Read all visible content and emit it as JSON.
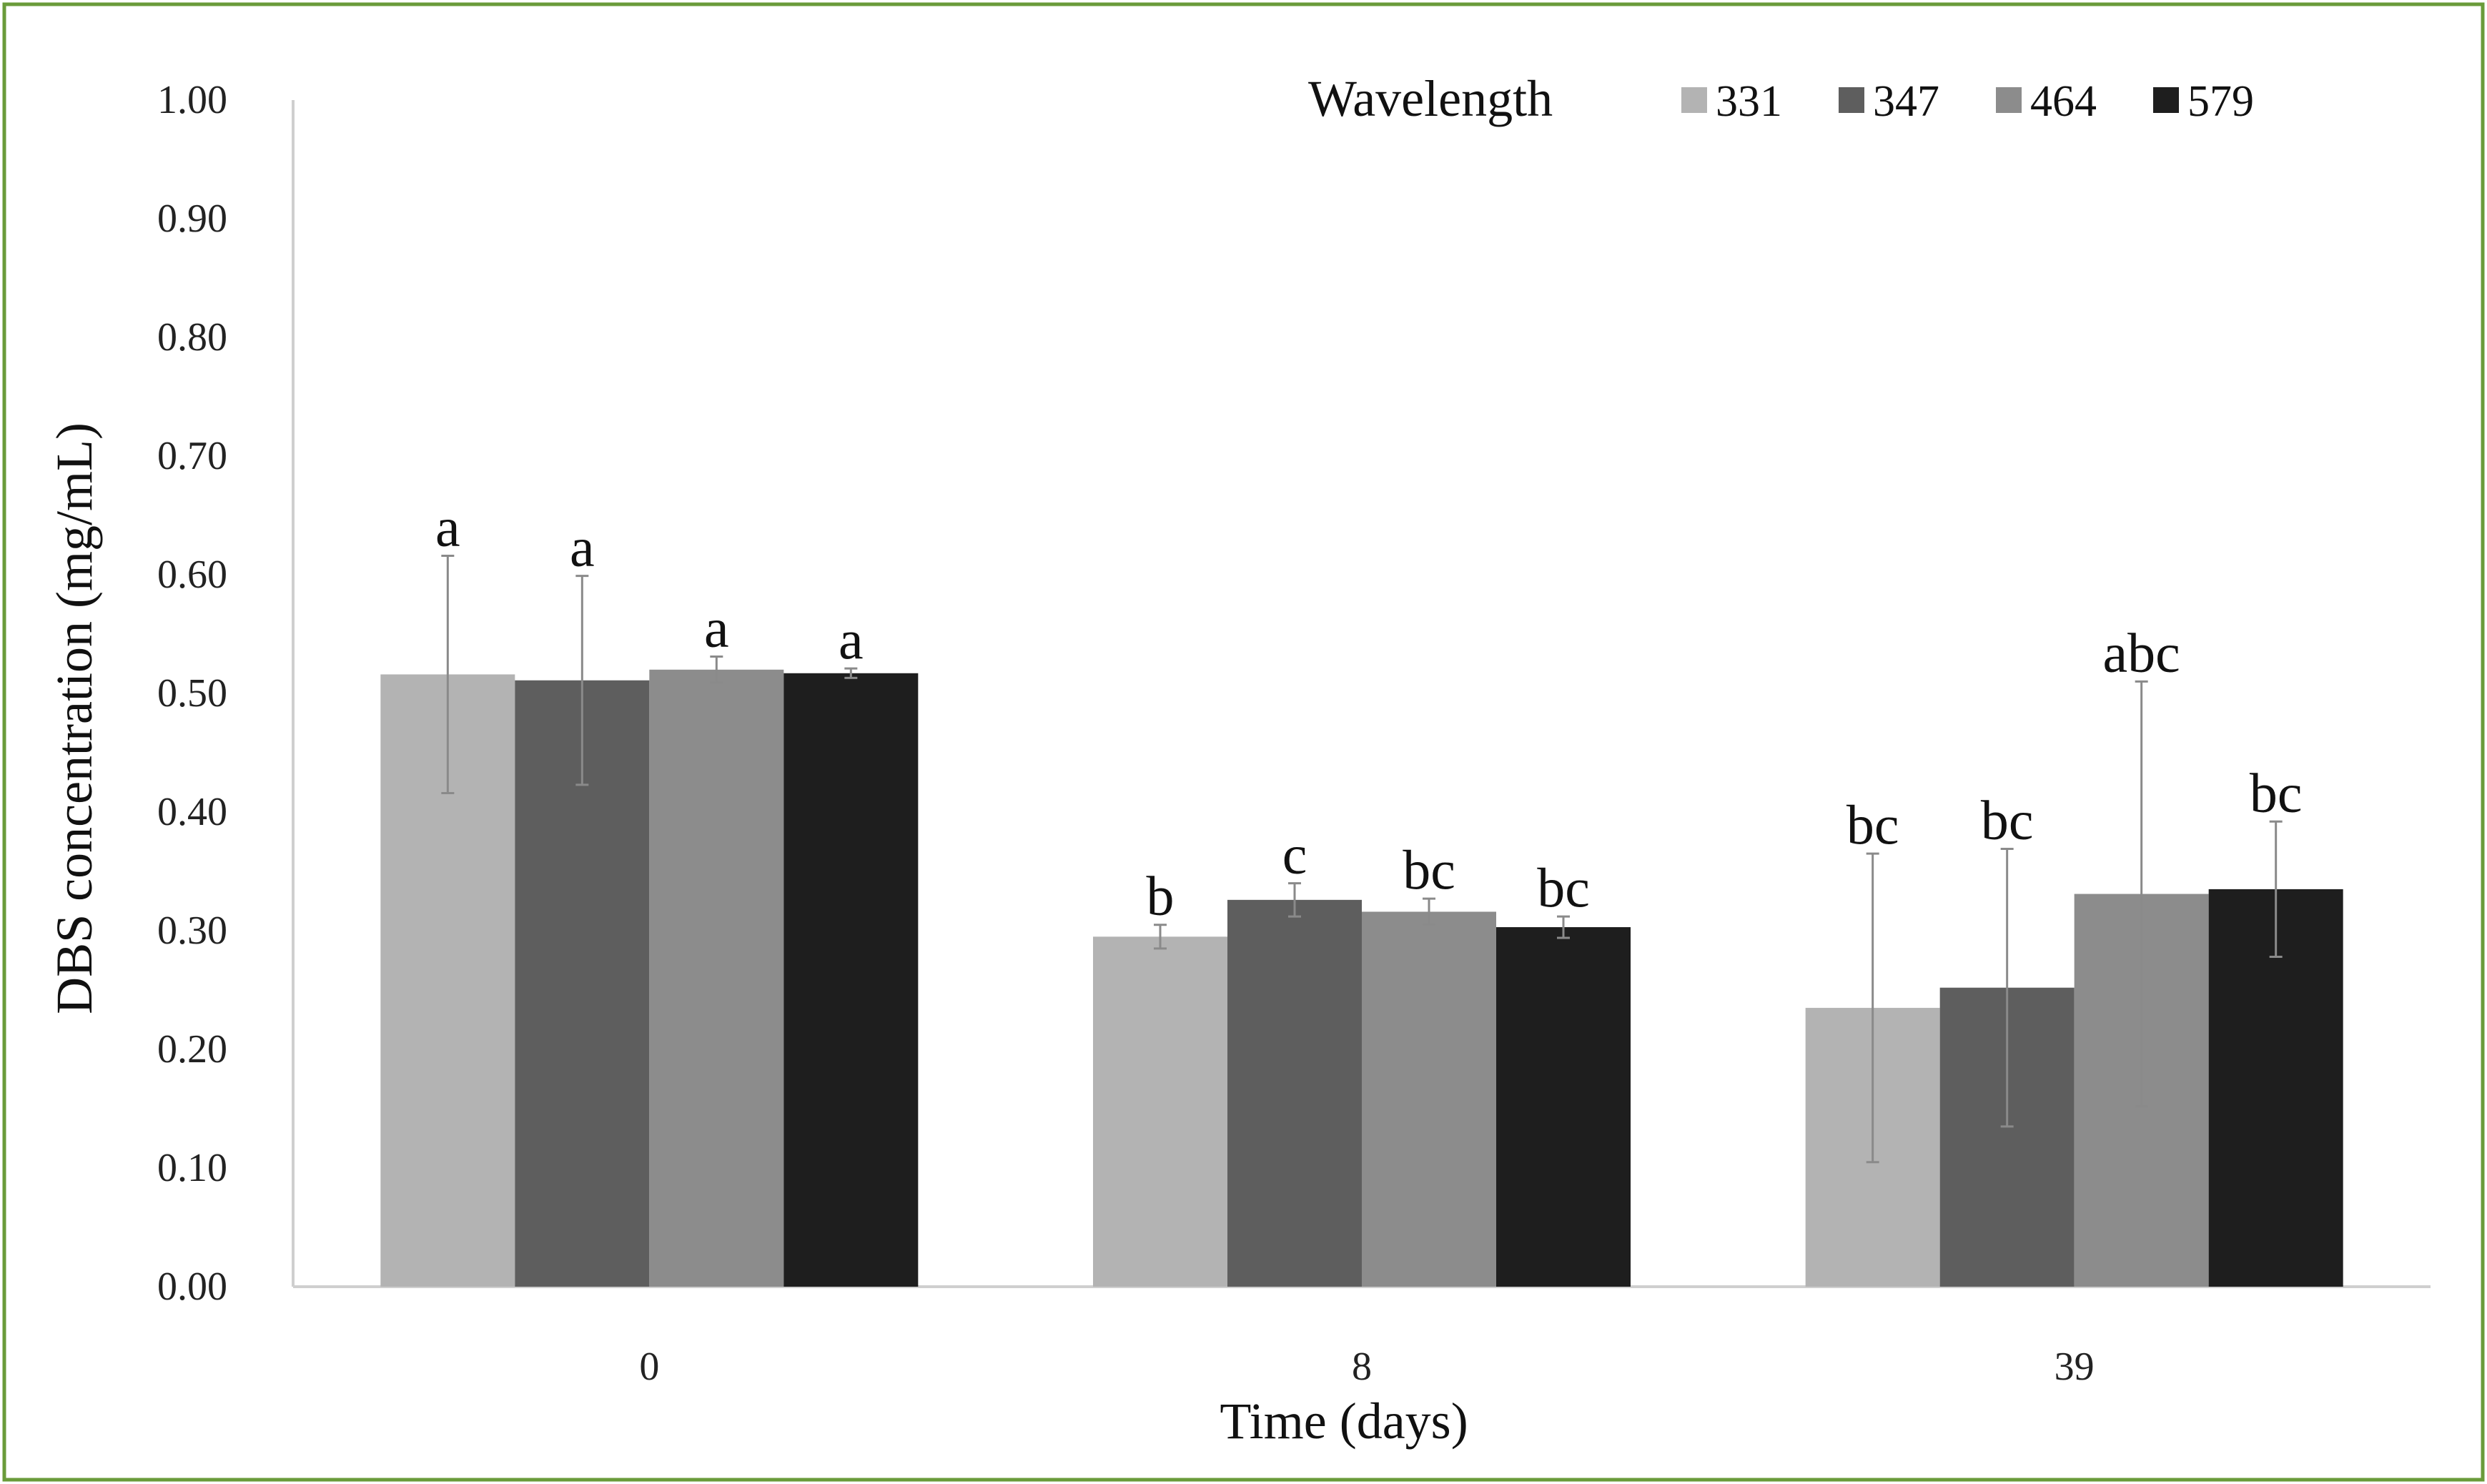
{
  "chart_data": {
    "type": "bar",
    "title": "",
    "xlabel": "Time (days)",
    "ylabel": "DBS concentration (mg/mL)",
    "ylim": [
      0,
      1.0
    ],
    "y_ticks": [
      "0.00",
      "0.10",
      "0.20",
      "0.30",
      "0.40",
      "0.50",
      "0.60",
      "0.70",
      "0.80",
      "0.90",
      "1.00"
    ],
    "categories": [
      "0",
      "8",
      "39"
    ],
    "legend_title": "Wavelength",
    "legend_position": "top-right",
    "grid": false,
    "series": [
      {
        "name": "331",
        "color": "#b3b3b3",
        "values": [
          0.516,
          0.295,
          0.235
        ],
        "errors": [
          0.1,
          0.01,
          0.13
        ],
        "labels": [
          "a",
          "b",
          "bc"
        ]
      },
      {
        "name": "347",
        "color": "#5e5e5e",
        "values": [
          0.511,
          0.326,
          0.252
        ],
        "errors": [
          0.088,
          0.014,
          0.117
        ],
        "labels": [
          "a",
          "c",
          "bc"
        ]
      },
      {
        "name": "464",
        "color": "#8c8c8c",
        "values": [
          0.52,
          0.316,
          0.331
        ],
        "errors": [
          0.011,
          0.011,
          0.179
        ],
        "labels": [
          "a",
          "bc",
          "abc"
        ]
      },
      {
        "name": "579",
        "color": "#1e1e1e",
        "values": [
          0.517,
          0.303,
          0.335
        ],
        "errors": [
          0.004,
          0.009,
          0.057
        ],
        "labels": [
          "a",
          "bc",
          "bc"
        ]
      }
    ]
  },
  "frame_color": "#6a9b3a"
}
